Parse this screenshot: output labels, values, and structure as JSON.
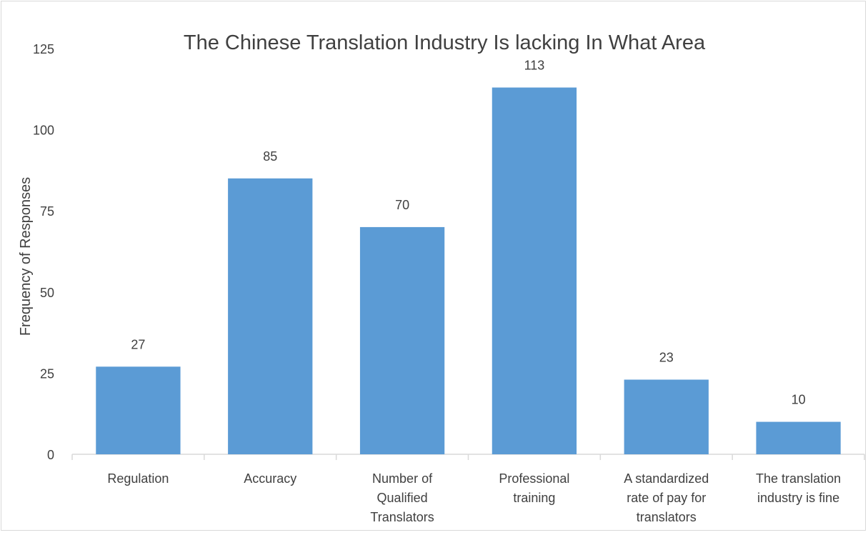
{
  "chart_data": {
    "type": "bar",
    "title": "The Chinese Translation Industry Is lacking In What Area",
    "xlabel": "",
    "ylabel": "Frequency of Responses",
    "categories": [
      [
        "Regulation"
      ],
      [
        "Accuracy"
      ],
      [
        "Number of",
        "Qualified",
        "Translators"
      ],
      [
        "Professional",
        "training"
      ],
      [
        "A standardized",
        "rate of pay for",
        "translators"
      ],
      [
        "The translation",
        "industry is fine"
      ]
    ],
    "values": [
      27,
      85,
      70,
      113,
      23,
      10
    ],
    "data_labels": [
      "27",
      "85",
      "70",
      "113",
      "23",
      "10"
    ],
    "yticks": [
      0,
      25,
      50,
      75,
      100,
      125
    ],
    "ylim": [
      0,
      125
    ],
    "grid": false,
    "legend": "none",
    "colors": {
      "bar": "#5b9bd5",
      "axis": "#d9d9d9",
      "text": "#404040"
    }
  }
}
